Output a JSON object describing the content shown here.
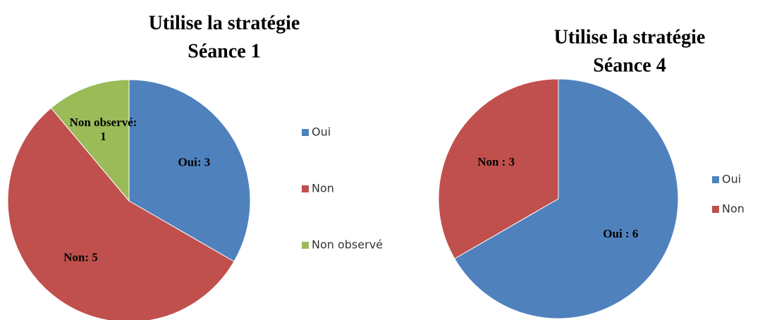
{
  "chart_data": [
    {
      "type": "pie",
      "title": "Utilise la stratégie",
      "subtitle": "Séance 1",
      "categories": [
        "Oui",
        "Non",
        "Non observé"
      ],
      "values": [
        3,
        5,
        1
      ],
      "value_labels": [
        "Oui: 3",
        "Non: 5",
        "Non observé:\n1"
      ],
      "colors": [
        "#4f81bd",
        "#c0504d",
        "#9bbb59"
      ],
      "legend": "right"
    },
    {
      "type": "pie",
      "title": "Utilise la stratégie",
      "subtitle": "Séance 4",
      "categories": [
        "Oui",
        "Non"
      ],
      "values": [
        6,
        3
      ],
      "value_labels": [
        "Oui : 6",
        "Non : 3"
      ],
      "colors": [
        "#4f81bd",
        "#c0504d"
      ],
      "legend": "right"
    }
  ]
}
